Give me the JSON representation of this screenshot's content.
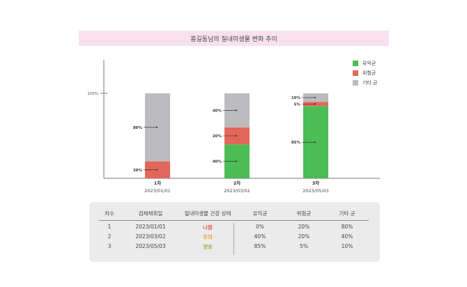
{
  "title": "흥길동님의 질내미생물 변화 추이",
  "colors": {
    "good": "#4cbc54",
    "harmful": "#e2675b",
    "other": "#bcbcbf",
    "title_bg": "#f7e1ec",
    "status_bad": "#e2675b",
    "status_caution": "#e8a93a",
    "status_good": "#8cbf3f"
  },
  "chart_data": {
    "type": "bar",
    "stacked": true,
    "categories": [
      "1차",
      "2차",
      "3차"
    ],
    "dates": [
      "2023/01/01",
      "2023/03/02",
      "2023/05/03"
    ],
    "y_tick_label": "100%",
    "ylim": [
      0,
      100
    ],
    "series": [
      {
        "name": "유익균",
        "values": [
          0,
          40,
          85
        ]
      },
      {
        "name": "위험균",
        "values": [
          20,
          20,
          5
        ]
      },
      {
        "name": "기타 균",
        "values": [
          80,
          40,
          10
        ]
      }
    ],
    "legend_position": "top-right"
  },
  "table": {
    "headers": [
      "차수",
      "검체채취일",
      "질내미생물 건강 상태",
      "유익균",
      "위험균",
      "기타 균"
    ],
    "rows": [
      [
        "1",
        "2023/01/01",
        "나쁨",
        "0%",
        "20%",
        "80%"
      ],
      [
        "2",
        "2023/03/02",
        "주의",
        "40%",
        "20%",
        "40%"
      ],
      [
        "3",
        "2023/05/03",
        "양호",
        "85%",
        "5%",
        "10%"
      ]
    ],
    "status_kinds": [
      "bad",
      "caution",
      "good"
    ]
  }
}
